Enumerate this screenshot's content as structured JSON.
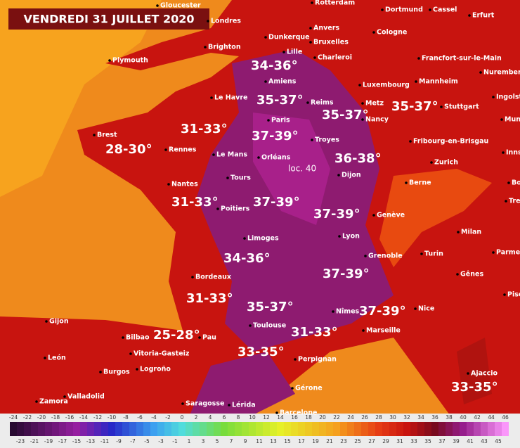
{
  "title": "VENDREDI 31 JUILLET 2020",
  "cities": [
    "Gloucester",
    "Londres",
    "Rotterdam",
    "Dortmund",
    "Cassel",
    "Erfurt",
    "Anvers",
    "Cologne",
    "Dunkerque",
    "Bruxelles",
    "Brighton",
    "Plymouth",
    "Lille",
    "Charleroi",
    "Francfort-sur-le-Main",
    "Nuremberg",
    "Amiens",
    "Luxembourg",
    "Mannheim",
    "Le Havre",
    "Reims",
    "Metz",
    "Ingolst",
    "Stuttgart",
    "Paris",
    "Nancy",
    "Mun",
    "Brest",
    "Troyes",
    "Fribourg-en-Brisgau",
    "Rennes",
    "Le Mans",
    "Orléans",
    "Innsb",
    "Zurich",
    "Dijon",
    "Tours",
    "Berne",
    "Nantes",
    "Bo",
    "Poitiers",
    "Tre",
    "Genève",
    "Milan",
    "Lyon",
    "Limoges",
    "Grenoble",
    "Turin",
    "Parme",
    "Bordeaux",
    "Gênes",
    "Pise",
    "Nice",
    "Nîmes",
    "Toulouse",
    "Marseille",
    "Gijon",
    "Bilbao",
    "Pau",
    "Vitoria-Gasteiz",
    "León",
    "Logroño",
    "Burgos",
    "Perpignan",
    "Ajaccio",
    "Valladolid",
    "Gérone",
    "Zamora",
    "Saragosse",
    "Lérida",
    "Barcelone"
  ],
  "temperatures": [
    "34-36°",
    "35-37°",
    "35-37°",
    "35-37°",
    "31-33°",
    "37-39°",
    "28-30°",
    "36-38°",
    "loc. 40",
    "31-33°",
    "37-39°",
    "37-39°",
    "34-36°",
    "37-39°",
    "31-33°",
    "35-37°",
    "37-39°",
    "31-33°",
    "25-28°",
    "33-35°",
    "33-35°"
  ],
  "legend": {
    "top": [
      -24,
      -22,
      -20,
      -18,
      -16,
      -14,
      -12,
      -10,
      -8,
      -6,
      -4,
      -2,
      0,
      2,
      4,
      6,
      8,
      10,
      12,
      14,
      16,
      18,
      20,
      22,
      24,
      26,
      28,
      30,
      32,
      34,
      36,
      38,
      40,
      42,
      44,
      46
    ],
    "bottom": [
      -23,
      -21,
      -19,
      -17,
      -15,
      -13,
      -11,
      -9,
      -7,
      -5,
      -3,
      -1,
      1,
      3,
      5,
      7,
      9,
      11,
      13,
      15,
      17,
      19,
      21,
      23,
      25,
      27,
      29,
      31,
      33,
      35,
      37,
      39,
      41,
      43,
      45
    ]
  }
}
